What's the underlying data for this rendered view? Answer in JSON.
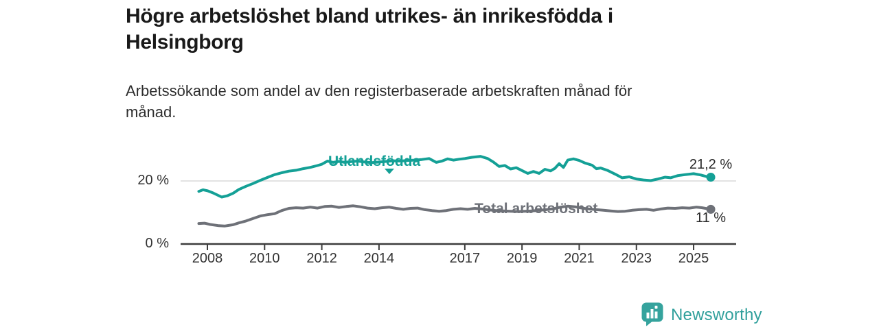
{
  "title": {
    "line1": "Högre arbetslöshet bland utrikes- än inrikesfödda i",
    "line2": "Helsingborg"
  },
  "subtitle": {
    "line1": "Arbetssökande som andel av den registerbaserade arbetskraften månad för",
    "line2": "månad."
  },
  "branding": {
    "logo_text": "Newsworthy",
    "logo_icon": "bar-chart-speech-bubble-icon"
  },
  "colors": {
    "foreign_born_line": "#14a096",
    "total_line": "#6e7178",
    "gridline": "#d9d9d9",
    "axis": "#3c3c3c",
    "axis_text": "#333333",
    "logo": "#35a39d"
  },
  "chart_data": {
    "type": "line",
    "title": "Högre arbetslöshet bland utrikes- än inrikesfödda i Helsingborg",
    "subtitle": "Arbetssökande som andel av den registerbaserade arbetskraften månad för månad.",
    "unit": "%",
    "grid": "horizontal-20-only",
    "legend_position": "inline-labels-on-lines",
    "x_axis": {
      "ticks": [
        2008,
        2010,
        2012,
        2014,
        2017,
        2019,
        2021,
        2023,
        2025
      ],
      "range": [
        2007.05,
        2026.5
      ]
    },
    "y_axis": {
      "ticks": [
        {
          "value": 0,
          "label": "0 %"
        },
        {
          "value": 20,
          "label": "20 %"
        }
      ],
      "range": [
        0,
        28.5
      ]
    },
    "series": [
      {
        "name": "Utlandsfödda",
        "color": "#14a096",
        "end_value": 21.2,
        "end_label": "21,2 %",
        "points": [
          [
            2007.7,
            16.7
          ],
          [
            2007.85,
            17.2
          ],
          [
            2008.0,
            16.9
          ],
          [
            2008.2,
            16.2
          ],
          [
            2008.5,
            14.9
          ],
          [
            2008.7,
            15.3
          ],
          [
            2008.9,
            16.1
          ],
          [
            2009.1,
            17.3
          ],
          [
            2009.35,
            18.3
          ],
          [
            2009.6,
            19.2
          ],
          [
            2009.85,
            20.2
          ],
          [
            2010.1,
            21.1
          ],
          [
            2010.35,
            22.0
          ],
          [
            2010.6,
            22.6
          ],
          [
            2010.85,
            23.1
          ],
          [
            2011.1,
            23.4
          ],
          [
            2011.35,
            23.9
          ],
          [
            2011.6,
            24.3
          ],
          [
            2011.85,
            24.9
          ],
          [
            2012.0,
            25.3
          ],
          [
            2012.2,
            26.3
          ],
          [
            2012.4,
            25.9
          ],
          [
            2012.6,
            26.2
          ],
          [
            2012.8,
            25.9
          ],
          [
            2013.0,
            26.1
          ],
          [
            2013.25,
            26.3
          ],
          [
            2013.5,
            26.0
          ],
          [
            2013.75,
            25.8
          ],
          [
            2014.0,
            26.0
          ],
          [
            2014.25,
            26.2
          ],
          [
            2014.5,
            26.4
          ],
          [
            2014.75,
            26.3
          ],
          [
            2015.0,
            26.5
          ],
          [
            2015.25,
            26.6
          ],
          [
            2015.5,
            26.8
          ],
          [
            2015.75,
            27.1
          ],
          [
            2016.0,
            25.9
          ],
          [
            2016.2,
            26.3
          ],
          [
            2016.4,
            27.0
          ],
          [
            2016.6,
            26.6
          ],
          [
            2016.8,
            26.9
          ],
          [
            2017.0,
            27.1
          ],
          [
            2017.25,
            27.5
          ],
          [
            2017.55,
            27.8
          ],
          [
            2017.8,
            27.1
          ],
          [
            2018.0,
            26.0
          ],
          [
            2018.2,
            24.6
          ],
          [
            2018.4,
            24.9
          ],
          [
            2018.6,
            23.8
          ],
          [
            2018.8,
            24.2
          ],
          [
            2019.0,
            23.3
          ],
          [
            2019.2,
            22.4
          ],
          [
            2019.4,
            23.0
          ],
          [
            2019.6,
            22.4
          ],
          [
            2019.8,
            23.7
          ],
          [
            2020.0,
            23.2
          ],
          [
            2020.15,
            24.0
          ],
          [
            2020.3,
            25.5
          ],
          [
            2020.45,
            24.3
          ],
          [
            2020.6,
            26.6
          ],
          [
            2020.8,
            27.0
          ],
          [
            2021.0,
            26.5
          ],
          [
            2021.2,
            25.7
          ],
          [
            2021.45,
            25.0
          ],
          [
            2021.6,
            23.9
          ],
          [
            2021.75,
            24.1
          ],
          [
            2022.0,
            23.3
          ],
          [
            2022.25,
            22.2
          ],
          [
            2022.5,
            21.0
          ],
          [
            2022.75,
            21.3
          ],
          [
            2023.0,
            20.6
          ],
          [
            2023.25,
            20.3
          ],
          [
            2023.5,
            20.1
          ],
          [
            2023.75,
            20.6
          ],
          [
            2024.0,
            21.2
          ],
          [
            2024.2,
            21.0
          ],
          [
            2024.45,
            21.7
          ],
          [
            2024.7,
            22.0
          ],
          [
            2025.0,
            22.3
          ],
          [
            2025.25,
            21.9
          ],
          [
            2025.45,
            21.4
          ],
          [
            2025.6,
            21.2
          ]
        ]
      },
      {
        "name": "Total arbetslöshet",
        "color": "#6e7178",
        "end_value": 11,
        "end_label": "11 %",
        "points": [
          [
            2007.7,
            6.5
          ],
          [
            2007.9,
            6.6
          ],
          [
            2008.1,
            6.2
          ],
          [
            2008.4,
            5.8
          ],
          [
            2008.6,
            5.7
          ],
          [
            2008.9,
            6.1
          ],
          [
            2009.1,
            6.7
          ],
          [
            2009.35,
            7.3
          ],
          [
            2009.6,
            8.1
          ],
          [
            2009.85,
            8.9
          ],
          [
            2010.1,
            9.3
          ],
          [
            2010.35,
            9.6
          ],
          [
            2010.6,
            10.6
          ],
          [
            2010.85,
            11.3
          ],
          [
            2011.1,
            11.5
          ],
          [
            2011.35,
            11.4
          ],
          [
            2011.6,
            11.7
          ],
          [
            2011.85,
            11.4
          ],
          [
            2012.1,
            11.9
          ],
          [
            2012.35,
            12.0
          ],
          [
            2012.6,
            11.6
          ],
          [
            2012.85,
            11.9
          ],
          [
            2013.1,
            12.1
          ],
          [
            2013.35,
            11.8
          ],
          [
            2013.6,
            11.4
          ],
          [
            2013.85,
            11.2
          ],
          [
            2014.1,
            11.5
          ],
          [
            2014.35,
            11.7
          ],
          [
            2014.6,
            11.3
          ],
          [
            2014.85,
            11.0
          ],
          [
            2015.1,
            11.3
          ],
          [
            2015.35,
            11.4
          ],
          [
            2015.6,
            10.9
          ],
          [
            2015.85,
            10.6
          ],
          [
            2016.1,
            10.4
          ],
          [
            2016.35,
            10.6
          ],
          [
            2016.6,
            11.0
          ],
          [
            2016.85,
            11.2
          ],
          [
            2017.1,
            11.0
          ],
          [
            2017.35,
            11.3
          ],
          [
            2017.6,
            11.1
          ],
          [
            2017.85,
            10.8
          ],
          [
            2018.1,
            10.6
          ],
          [
            2018.35,
            10.5
          ],
          [
            2018.6,
            10.4
          ],
          [
            2018.85,
            10.3
          ],
          [
            2019.1,
            10.4
          ],
          [
            2019.35,
            10.5
          ],
          [
            2019.6,
            10.7
          ],
          [
            2019.85,
            10.9
          ],
          [
            2020.1,
            11.2
          ],
          [
            2020.35,
            11.7
          ],
          [
            2020.6,
            12.0
          ],
          [
            2020.85,
            11.8
          ],
          [
            2021.1,
            11.4
          ],
          [
            2021.35,
            11.1
          ],
          [
            2021.6,
            10.9
          ],
          [
            2021.85,
            10.7
          ],
          [
            2022.1,
            10.5
          ],
          [
            2022.35,
            10.3
          ],
          [
            2022.6,
            10.4
          ],
          [
            2022.85,
            10.7
          ],
          [
            2023.1,
            10.9
          ],
          [
            2023.35,
            11.0
          ],
          [
            2023.6,
            10.7
          ],
          [
            2023.85,
            11.1
          ],
          [
            2024.1,
            11.4
          ],
          [
            2024.35,
            11.3
          ],
          [
            2024.6,
            11.5
          ],
          [
            2024.85,
            11.4
          ],
          [
            2025.1,
            11.7
          ],
          [
            2025.3,
            11.5
          ],
          [
            2025.6,
            11.0
          ]
        ]
      }
    ]
  }
}
